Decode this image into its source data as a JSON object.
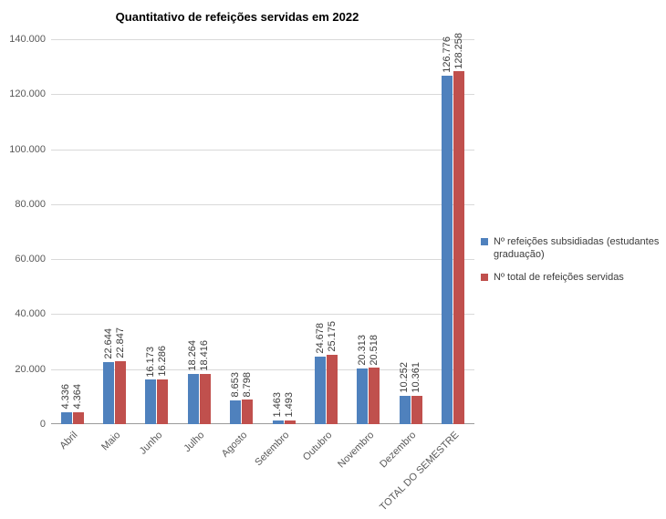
{
  "chart_data": {
    "type": "bar",
    "title": "Quantitativo de refeições servidas em 2022",
    "categories": [
      "Abril",
      "Maio",
      "Junho",
      "Julho",
      "Agosto",
      "Setembro",
      "Outubro",
      "Novembro",
      "Dezembro",
      "TOTAL DO SEMESTRE"
    ],
    "series": [
      {
        "name": "Nº refeições subsidiadas (estudantes graduação)",
        "color": "#4f81bd",
        "values": [
          4336,
          22644,
          16173,
          18264,
          8653,
          1463,
          24678,
          20313,
          10252,
          126776
        ],
        "labels": [
          "4.336",
          "22.644",
          "16.173",
          "18.264",
          "8.653",
          "1.463",
          "24.678",
          "20.313",
          "10.252",
          "126.776"
        ]
      },
      {
        "name": "Nº total de refeições servidas",
        "color": "#c0504d",
        "values": [
          4364,
          22847,
          16286,
          18416,
          8798,
          1493,
          25175,
          20518,
          10361,
          128258
        ],
        "labels": [
          "4.364",
          "22.847",
          "16.286",
          "18.416",
          "8.798",
          "1.493",
          "25.175",
          "20.518",
          "10.361",
          "128.258"
        ]
      }
    ],
    "ylim": [
      0,
      140000
    ],
    "yticks": [
      {
        "value": 0,
        "label": "0"
      },
      {
        "value": 20000,
        "label": "20.000"
      },
      {
        "value": 40000,
        "label": "40.000"
      },
      {
        "value": 60000,
        "label": "60.000"
      },
      {
        "value": 80000,
        "label": "80.000"
      },
      {
        "value": 100000,
        "label": "100.000"
      },
      {
        "value": 120000,
        "label": "120.000"
      },
      {
        "value": 140000,
        "label": "140.000"
      }
    ],
    "grid": true,
    "legend_position": "right",
    "colors": {
      "gridline": "#d9d9d9",
      "axis_line": "#9b9b9b",
      "tick_label": "#595959",
      "data_label": "#3b3b3b"
    }
  }
}
